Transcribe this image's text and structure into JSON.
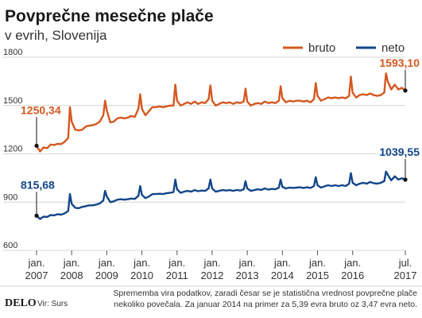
{
  "chart_data": {
    "type": "line",
    "title": "Povprečne mesečne plače",
    "subtitle": "v evrih, Slovenija",
    "yticks": [
      600,
      900,
      1200,
      1500,
      1800
    ],
    "ylim": [
      600,
      1800
    ],
    "xlim": [
      2007.0,
      2017.5
    ],
    "xticks": [
      {
        "line1": "jan.",
        "line2": "2007",
        "x": 2007.0
      },
      {
        "line1": "jan.",
        "line2": "2008",
        "x": 2008.0
      },
      {
        "line1": "jan.",
        "line2": "2009",
        "x": 2009.0
      },
      {
        "line1": "jan.",
        "line2": "2010",
        "x": 2010.0
      },
      {
        "line1": "jan.",
        "line2": "2011",
        "x": 2011.0
      },
      {
        "line1": "jan.",
        "line2": "2012",
        "x": 2012.0
      },
      {
        "line1": "jan.",
        "line2": "2013",
        "x": 2013.0
      },
      {
        "line1": "jan.",
        "line2": "2014",
        "x": 2014.0
      },
      {
        "line1": "jan.",
        "line2": "2015",
        "x": 2015.0
      },
      {
        "line1": "jan.",
        "line2": "2016",
        "x": 2016.0
      },
      {
        "line1": "jul.",
        "line2": "2017",
        "x": 2017.5
      }
    ],
    "series": [
      {
        "name": "bruto",
        "color": "#d4581f",
        "values": [
          [
            2007.0,
            1250
          ],
          [
            2007.1,
            1215
          ],
          [
            2007.2,
            1240
          ],
          [
            2007.3,
            1235
          ],
          [
            2007.4,
            1258
          ],
          [
            2007.5,
            1255
          ],
          [
            2007.6,
            1262
          ],
          [
            2007.7,
            1260
          ],
          [
            2007.8,
            1275
          ],
          [
            2007.9,
            1300
          ],
          [
            2007.95,
            1490
          ],
          [
            2008.0,
            1400
          ],
          [
            2008.1,
            1350
          ],
          [
            2008.2,
            1345
          ],
          [
            2008.3,
            1350
          ],
          [
            2008.4,
            1370
          ],
          [
            2008.5,
            1375
          ],
          [
            2008.6,
            1378
          ],
          [
            2008.7,
            1385
          ],
          [
            2008.8,
            1400
          ],
          [
            2008.9,
            1440
          ],
          [
            2008.95,
            1530
          ],
          [
            2009.0,
            1470
          ],
          [
            2009.1,
            1395
          ],
          [
            2009.2,
            1400
          ],
          [
            2009.3,
            1420
          ],
          [
            2009.4,
            1425
          ],
          [
            2009.5,
            1420
          ],
          [
            2009.6,
            1425
          ],
          [
            2009.7,
            1435
          ],
          [
            2009.8,
            1430
          ],
          [
            2009.9,
            1480
          ],
          [
            2009.95,
            1570
          ],
          [
            2010.0,
            1480
          ],
          [
            2010.1,
            1440
          ],
          [
            2010.2,
            1465
          ],
          [
            2010.3,
            1490
          ],
          [
            2010.4,
            1490
          ],
          [
            2010.5,
            1495
          ],
          [
            2010.6,
            1490
          ],
          [
            2010.7,
            1495
          ],
          [
            2010.8,
            1500
          ],
          [
            2010.9,
            1500
          ],
          [
            2010.95,
            1630
          ],
          [
            2011.0,
            1530
          ],
          [
            2011.1,
            1500
          ],
          [
            2011.2,
            1510
          ],
          [
            2011.3,
            1520
          ],
          [
            2011.4,
            1510
          ],
          [
            2011.5,
            1525
          ],
          [
            2011.6,
            1510
          ],
          [
            2011.7,
            1520
          ],
          [
            2011.8,
            1515
          ],
          [
            2011.9,
            1540
          ],
          [
            2011.95,
            1625
          ],
          [
            2012.0,
            1530
          ],
          [
            2012.1,
            1500
          ],
          [
            2012.2,
            1510
          ],
          [
            2012.3,
            1520
          ],
          [
            2012.4,
            1515
          ],
          [
            2012.5,
            1520
          ],
          [
            2012.6,
            1510
          ],
          [
            2012.7,
            1520
          ],
          [
            2012.8,
            1515
          ],
          [
            2012.9,
            1525
          ],
          [
            2012.95,
            1605
          ],
          [
            2013.0,
            1525
          ],
          [
            2013.1,
            1500
          ],
          [
            2013.2,
            1510
          ],
          [
            2013.3,
            1515
          ],
          [
            2013.4,
            1510
          ],
          [
            2013.5,
            1525
          ],
          [
            2013.6,
            1515
          ],
          [
            2013.7,
            1520
          ],
          [
            2013.8,
            1515
          ],
          [
            2013.9,
            1530
          ],
          [
            2013.95,
            1620
          ],
          [
            2014.0,
            1545
          ],
          [
            2014.1,
            1520
          ],
          [
            2014.2,
            1530
          ],
          [
            2014.3,
            1525
          ],
          [
            2014.4,
            1530
          ],
          [
            2014.5,
            1530
          ],
          [
            2014.6,
            1525
          ],
          [
            2014.7,
            1530
          ],
          [
            2014.8,
            1520
          ],
          [
            2014.9,
            1540
          ],
          [
            2014.95,
            1640
          ],
          [
            2015.0,
            1560
          ],
          [
            2015.1,
            1530
          ],
          [
            2015.2,
            1540
          ],
          [
            2015.3,
            1550
          ],
          [
            2015.4,
            1545
          ],
          [
            2015.5,
            1550
          ],
          [
            2015.6,
            1545
          ],
          [
            2015.7,
            1550
          ],
          [
            2015.8,
            1545
          ],
          [
            2015.9,
            1560
          ],
          [
            2015.95,
            1680
          ],
          [
            2016.0,
            1580
          ],
          [
            2016.1,
            1550
          ],
          [
            2016.2,
            1565
          ],
          [
            2016.3,
            1570
          ],
          [
            2016.4,
            1565
          ],
          [
            2016.5,
            1575
          ],
          [
            2016.6,
            1565
          ],
          [
            2016.7,
            1560
          ],
          [
            2016.8,
            1565
          ],
          [
            2016.9,
            1580
          ],
          [
            2016.95,
            1700
          ],
          [
            2017.0,
            1650
          ],
          [
            2017.1,
            1600
          ],
          [
            2017.2,
            1630
          ],
          [
            2017.3,
            1600
          ],
          [
            2017.4,
            1610
          ],
          [
            2017.5,
            1593
          ]
        ]
      },
      {
        "name": "neto",
        "color": "#12468a",
        "values": [
          [
            2007.0,
            816
          ],
          [
            2007.1,
            795
          ],
          [
            2007.2,
            810
          ],
          [
            2007.3,
            808
          ],
          [
            2007.4,
            820
          ],
          [
            2007.5,
            818
          ],
          [
            2007.6,
            825
          ],
          [
            2007.7,
            822
          ],
          [
            2007.8,
            830
          ],
          [
            2007.9,
            845
          ],
          [
            2007.95,
            950
          ],
          [
            2008.0,
            890
          ],
          [
            2008.1,
            865
          ],
          [
            2008.2,
            862
          ],
          [
            2008.3,
            870
          ],
          [
            2008.4,
            875
          ],
          [
            2008.5,
            880
          ],
          [
            2008.6,
            880
          ],
          [
            2008.7,
            885
          ],
          [
            2008.8,
            892
          ],
          [
            2008.9,
            910
          ],
          [
            2008.95,
            970
          ],
          [
            2009.0,
            935
          ],
          [
            2009.1,
            900
          ],
          [
            2009.2,
            905
          ],
          [
            2009.3,
            915
          ],
          [
            2009.4,
            918
          ],
          [
            2009.5,
            915
          ],
          [
            2009.6,
            918
          ],
          [
            2009.7,
            922
          ],
          [
            2009.8,
            920
          ],
          [
            2009.9,
            940
          ],
          [
            2009.95,
            1000
          ],
          [
            2010.0,
            945
          ],
          [
            2010.1,
            925
          ],
          [
            2010.2,
            935
          ],
          [
            2010.3,
            950
          ],
          [
            2010.4,
            950
          ],
          [
            2010.5,
            952
          ],
          [
            2010.6,
            950
          ],
          [
            2010.7,
            955
          ],
          [
            2010.8,
            958
          ],
          [
            2010.9,
            962
          ],
          [
            2010.95,
            1040
          ],
          [
            2011.0,
            980
          ],
          [
            2011.1,
            958
          ],
          [
            2011.2,
            965
          ],
          [
            2011.3,
            970
          ],
          [
            2011.4,
            965
          ],
          [
            2011.5,
            975
          ],
          [
            2011.6,
            968
          ],
          [
            2011.7,
            972
          ],
          [
            2011.8,
            970
          ],
          [
            2011.9,
            985
          ],
          [
            2011.95,
            1040
          ],
          [
            2012.0,
            985
          ],
          [
            2012.1,
            965
          ],
          [
            2012.2,
            970
          ],
          [
            2012.3,
            975
          ],
          [
            2012.4,
            972
          ],
          [
            2012.5,
            975
          ],
          [
            2012.6,
            970
          ],
          [
            2012.7,
            976
          ],
          [
            2012.8,
            972
          ],
          [
            2012.9,
            980
          ],
          [
            2012.95,
            1030
          ],
          [
            2013.0,
            985
          ],
          [
            2013.1,
            970
          ],
          [
            2013.2,
            975
          ],
          [
            2013.3,
            980
          ],
          [
            2013.4,
            976
          ],
          [
            2013.5,
            985
          ],
          [
            2013.6,
            978
          ],
          [
            2013.7,
            982
          ],
          [
            2013.8,
            980
          ],
          [
            2013.9,
            990
          ],
          [
            2013.95,
            1040
          ],
          [
            2014.0,
            995
          ],
          [
            2014.1,
            985
          ],
          [
            2014.2,
            990
          ],
          [
            2014.3,
            988
          ],
          [
            2014.4,
            990
          ],
          [
            2014.5,
            992
          ],
          [
            2014.6,
            988
          ],
          [
            2014.7,
            992
          ],
          [
            2014.8,
            988
          ],
          [
            2014.9,
            1000
          ],
          [
            2014.95,
            1055
          ],
          [
            2015.0,
            1005
          ],
          [
            2015.1,
            990
          ],
          [
            2015.2,
            998
          ],
          [
            2015.3,
            1005
          ],
          [
            2015.4,
            1000
          ],
          [
            2015.5,
            1005
          ],
          [
            2015.6,
            1000
          ],
          [
            2015.7,
            1005
          ],
          [
            2015.8,
            1000
          ],
          [
            2015.9,
            1015
          ],
          [
            2015.95,
            1080
          ],
          [
            2016.0,
            1020
          ],
          [
            2016.1,
            1005
          ],
          [
            2016.2,
            1015
          ],
          [
            2016.3,
            1020
          ],
          [
            2016.4,
            1015
          ],
          [
            2016.5,
            1025
          ],
          [
            2016.6,
            1018
          ],
          [
            2016.7,
            1015
          ],
          [
            2016.8,
            1020
          ],
          [
            2016.9,
            1030
          ],
          [
            2016.95,
            1090
          ],
          [
            2017.0,
            1070
          ],
          [
            2017.1,
            1035
          ],
          [
            2017.2,
            1060
          ],
          [
            2017.3,
            1040
          ],
          [
            2017.4,
            1048
          ],
          [
            2017.5,
            1040
          ]
        ]
      }
    ],
    "annotations": [
      {
        "series": "bruto",
        "text": "1250,34",
        "x": 2007.0,
        "y": 1250.34
      },
      {
        "series": "bruto",
        "text": "1593,10",
        "x": 2017.5,
        "y": 1593.1
      },
      {
        "series": "neto",
        "text": "815,68",
        "x": 2007.0,
        "y": 815.68
      },
      {
        "series": "neto",
        "text": "1039,55",
        "x": 2017.5,
        "y": 1039.55
      }
    ],
    "legend_position": "top-right",
    "grid": true
  },
  "footer": {
    "logo": "DELO",
    "source": "Vir: Surs",
    "note_line1": "Sprememba vira podatkov, zaradi česar se je statistična vrednost povprečne plače",
    "note_line2": "nekoliko povečala. Za januar 2014 na primer za 5,39 evra bruto oz 3,47 evra neto."
  }
}
